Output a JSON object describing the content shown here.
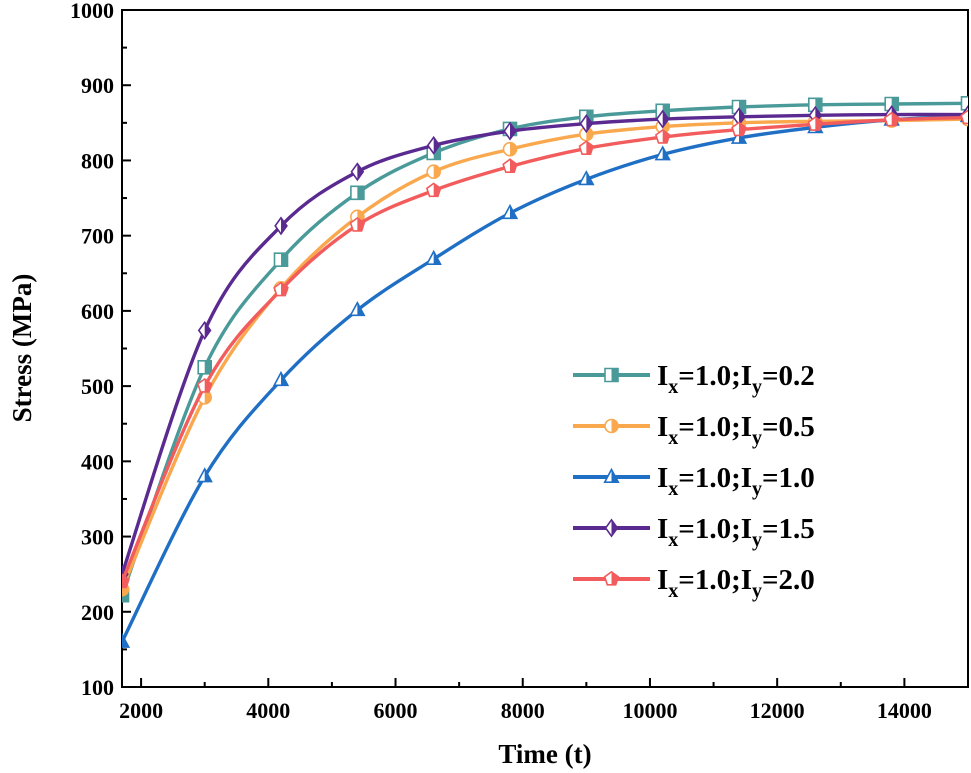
{
  "chart_data": {
    "type": "line",
    "title": "",
    "xlabel": "Time (t)",
    "ylabel": "Stress (MPa)",
    "xlim": [
      1700,
      15000
    ],
    "ylim": [
      100,
      1000
    ],
    "xticks": [
      2000,
      4000,
      6000,
      8000,
      10000,
      12000,
      14000
    ],
    "xtick_labels": [
      "2000",
      "4000",
      "6000",
      "8000",
      "10000",
      "12000",
      "14000"
    ],
    "yticks": [
      100,
      200,
      300,
      400,
      500,
      600,
      700,
      800,
      900,
      1000
    ],
    "ytick_labels": [
      "100",
      "200",
      "300",
      "400",
      "500",
      "600",
      "700",
      "800",
      "900",
      "1000"
    ],
    "grid": false,
    "legend_position": "right",
    "x": [
      1700,
      3000,
      4200,
      5400,
      6600,
      7800,
      9000,
      10200,
      11400,
      12600,
      13800,
      15000
    ],
    "series": [
      {
        "name": "Ix=1.0;Iy=0.2",
        "label": {
          "p1": "I",
          "s1": "x",
          "p2": "=1.0;I",
          "s2": "y",
          "p3": "=0.2"
        },
        "color": "#4a9a9a",
        "marker": "square-half",
        "values": [
          222,
          525,
          668,
          757,
          810,
          842,
          858,
          866,
          871,
          874,
          875,
          876
        ]
      },
      {
        "name": "Ix=1.0;Iy=0.5",
        "label": {
          "p1": "I",
          "s1": "x",
          "p2": "=1.0;I",
          "s2": "y",
          "p3": "=0.5"
        },
        "color": "#f9a84e",
        "marker": "circle-half",
        "values": [
          230,
          485,
          630,
          725,
          785,
          815,
          835,
          845,
          850,
          852,
          853,
          855
        ]
      },
      {
        "name": "Ix=1.0;Iy=1.0",
        "label": {
          "p1": "I",
          "s1": "x",
          "p2": "=1.0;I",
          "s2": "y",
          "p3": "=1.0"
        },
        "color": "#1f6fc5",
        "marker": "triangle-half",
        "values": [
          160,
          380,
          508,
          601,
          669,
          730,
          775,
          808,
          830,
          844,
          854,
          859
        ]
      },
      {
        "name": "Ix=1.0;Iy=1.5",
        "label": {
          "p1": "I",
          "s1": "x",
          "p2": "=1.0;I",
          "s2": "y",
          "p3": "=1.5"
        },
        "color": "#5a2a90",
        "marker": "diamond-half",
        "values": [
          250,
          574,
          713,
          785,
          820,
          839,
          849,
          855,
          858,
          860,
          861,
          861
        ]
      },
      {
        "name": "Ix=1.0;Iy=2.0",
        "label": {
          "p1": "I",
          "s1": "x",
          "p2": "=1.0;I",
          "s2": "y",
          "p3": "=2.0"
        },
        "color": "#f25c5c",
        "marker": "pentagon-half",
        "values": [
          240,
          500,
          628,
          714,
          760,
          792,
          816,
          831,
          841,
          848,
          854,
          857
        ]
      }
    ]
  }
}
